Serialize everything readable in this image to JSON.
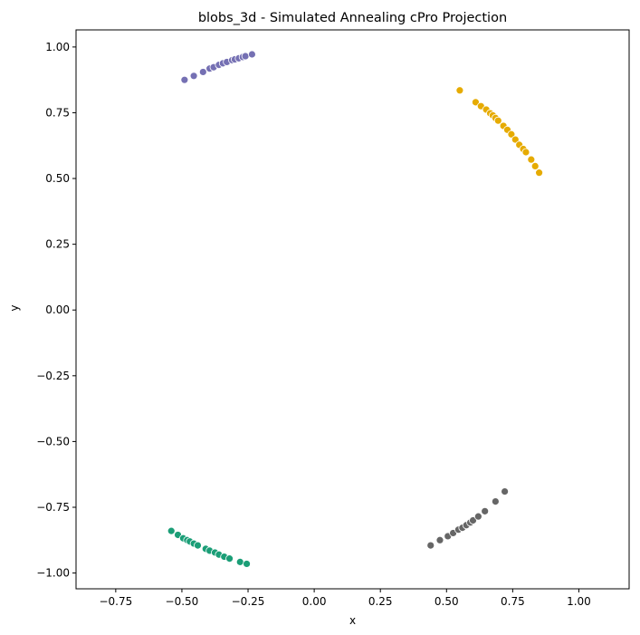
{
  "chart_data": {
    "type": "scatter",
    "title": "blobs_3d - Simulated Annealing cPro Projection",
    "xlabel": "x",
    "ylabel": "y",
    "xlim": [
      -0.9,
      1.19
    ],
    "ylim": [
      -1.06,
      1.065
    ],
    "xticks": [
      -0.75,
      -0.5,
      -0.25,
      0.0,
      0.25,
      0.5,
      0.75,
      1.0
    ],
    "xtick_labels": [
      "−0.75",
      "−0.50",
      "−0.25",
      "0.00",
      "0.25",
      "0.50",
      "0.75",
      "1.00"
    ],
    "yticks": [
      -1.0,
      -0.75,
      -0.5,
      -0.25,
      0.0,
      0.25,
      0.5,
      0.75,
      1.0
    ],
    "ytick_labels": [
      "−1.00",
      "−0.75",
      "−0.50",
      "−0.25",
      "0.00",
      "0.25",
      "0.50",
      "0.75",
      "1.00"
    ],
    "grid": false,
    "legend": false,
    "series": [
      {
        "color": "#7570b3",
        "x": [
          -0.49,
          -0.455,
          -0.42,
          -0.395,
          -0.38,
          -0.36,
          -0.345,
          -0.33,
          -0.31,
          -0.3,
          -0.285,
          -0.27,
          -0.26,
          -0.235
        ],
        "y": [
          0.875,
          0.89,
          0.905,
          0.918,
          0.923,
          0.932,
          0.938,
          0.943,
          0.95,
          0.953,
          0.957,
          0.962,
          0.965,
          0.972
        ]
      },
      {
        "color": "#e6ab02",
        "x": [
          0.55,
          0.61,
          0.63,
          0.65,
          0.665,
          0.675,
          0.685,
          0.695,
          0.715,
          0.73,
          0.745,
          0.76,
          0.775,
          0.79,
          0.8,
          0.82,
          0.835,
          0.85
        ],
        "y": [
          0.835,
          0.79,
          0.775,
          0.762,
          0.748,
          0.74,
          0.73,
          0.72,
          0.7,
          0.685,
          0.668,
          0.648,
          0.628,
          0.612,
          0.6,
          0.572,
          0.547,
          0.522
        ]
      },
      {
        "color": "#1b9e77",
        "x": [
          -0.54,
          -0.515,
          -0.495,
          -0.48,
          -0.47,
          -0.455,
          -0.44,
          -0.41,
          -0.395,
          -0.375,
          -0.36,
          -0.34,
          -0.32,
          -0.28,
          -0.255
        ],
        "y": [
          -0.84,
          -0.855,
          -0.868,
          -0.875,
          -0.88,
          -0.888,
          -0.895,
          -0.908,
          -0.915,
          -0.922,
          -0.93,
          -0.938,
          -0.945,
          -0.958,
          -0.965
        ]
      },
      {
        "color": "#666666",
        "x": [
          0.44,
          0.475,
          0.505,
          0.525,
          0.545,
          0.56,
          0.575,
          0.59,
          0.6,
          0.62,
          0.645,
          0.685,
          0.72
        ],
        "y": [
          -0.895,
          -0.875,
          -0.86,
          -0.848,
          -0.835,
          -0.828,
          -0.818,
          -0.808,
          -0.8,
          -0.785,
          -0.765,
          -0.728,
          -0.69
        ]
      }
    ]
  }
}
